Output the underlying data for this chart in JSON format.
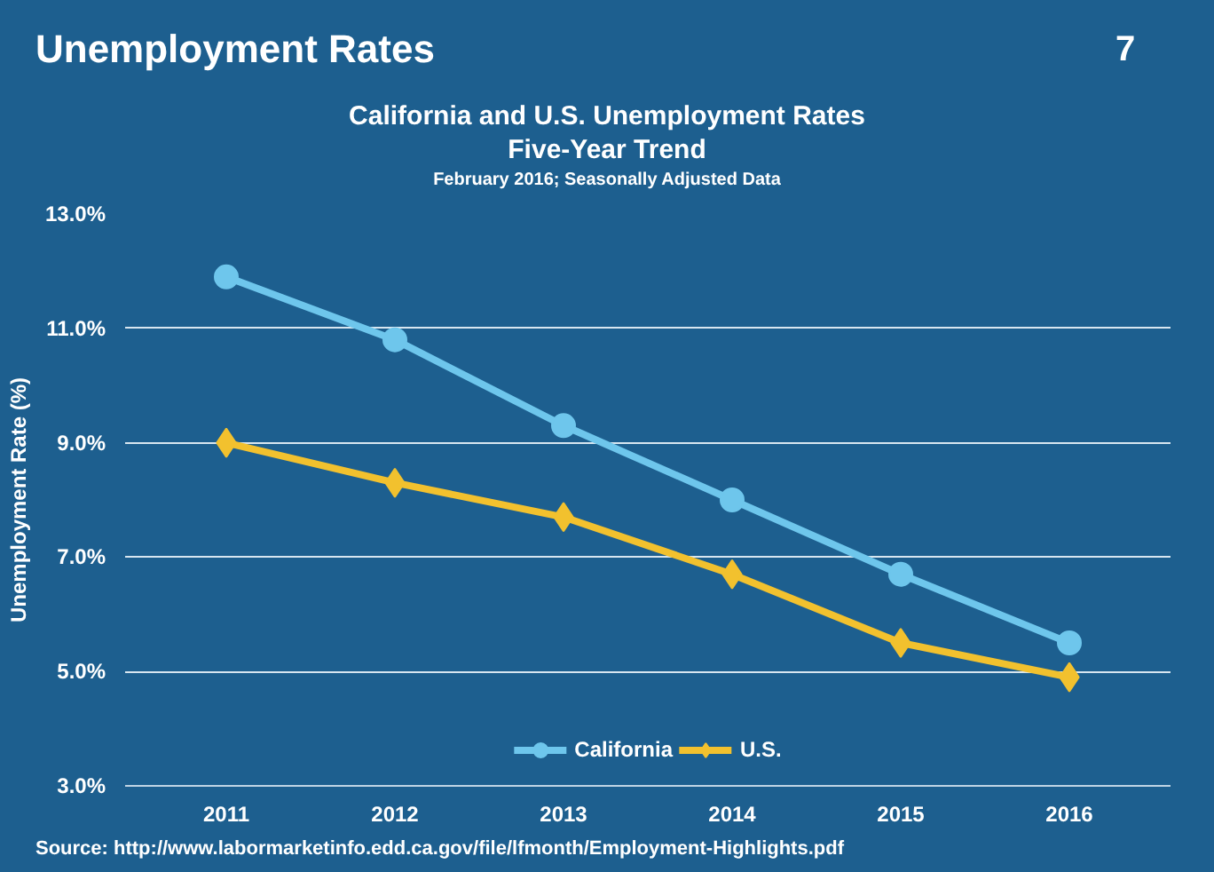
{
  "chart_data": {
    "type": "line",
    "title": "Unemployment Rates",
    "subtitle": "California and U.S. Unemployment Rates",
    "annotations": [
      "Five-Year Trend",
      "February 2016; Seasonally Adjusted Data",
      "Source: http://www.labormarketinfo.edd.ca.gov/file/lfmonth/Employment-Highlights.pdf",
      "7"
    ],
    "ylabel": "Unemployment Rate (%)",
    "categories": [
      "2011",
      "2012",
      "2013",
      "2014",
      "2015",
      "2016"
    ],
    "series": [
      {
        "name": "California",
        "color": "#6ec6ec",
        "marker": "circle",
        "values": [
          11.9,
          10.8,
          9.3,
          8.0,
          6.7,
          5.5
        ]
      },
      {
        "name": "U.S.",
        "color": "#f2c12e",
        "marker": "diamond",
        "values": [
          9.0,
          8.3,
          7.7,
          6.7,
          5.5,
          4.9
        ]
      }
    ],
    "ylim": [
      3,
      13
    ],
    "yticks": [
      {
        "value": 3,
        "label": "3.0%"
      },
      {
        "value": 5,
        "label": "5.0%"
      },
      {
        "value": 7,
        "label": "7.0%"
      },
      {
        "value": 9,
        "label": "9.0%"
      },
      {
        "value": 11,
        "label": "11.0%"
      },
      {
        "value": 13,
        "label": "13.0%"
      }
    ],
    "grid": "y",
    "legend": "bottom",
    "line_style": "solid"
  }
}
